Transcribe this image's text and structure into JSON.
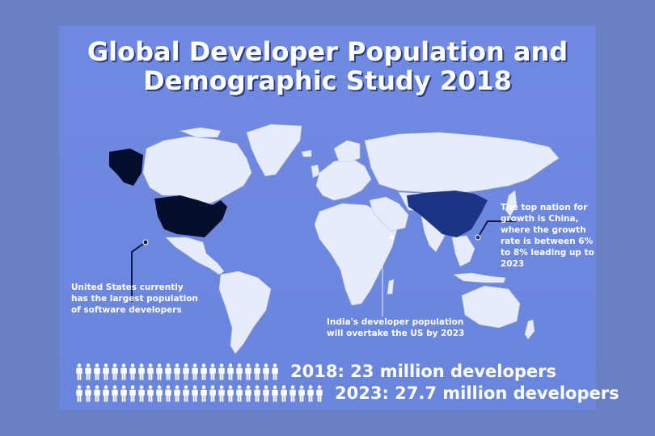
{
  "title": {
    "line1": "Global Developer Population and",
    "line2": "Demographic Study 2018"
  },
  "annotations": {
    "us": [
      "United States currently",
      "has the largest population",
      "of software developers"
    ],
    "india": [
      "India's developer population",
      "will overtake the US by 2023"
    ],
    "china": [
      "The top nation for",
      "growth is China,",
      "where the growth",
      "rate is between 6%",
      "to 8% leading up to",
      "2023"
    ]
  },
  "stats": [
    {
      "label": "2018: 23 million developers",
      "icon_count": 23
    },
    {
      "label": "2023: 27.7 million developers",
      "icon_count": 28
    }
  ],
  "colors": {
    "background": "#6b80c4",
    "card": "#6f8ae0",
    "land": "#e6ecfb",
    "us_highlight": "#030d2e",
    "china_highlight": "#1b3484",
    "icon": "#ffffff"
  },
  "icons": {
    "people": "person-icon"
  }
}
